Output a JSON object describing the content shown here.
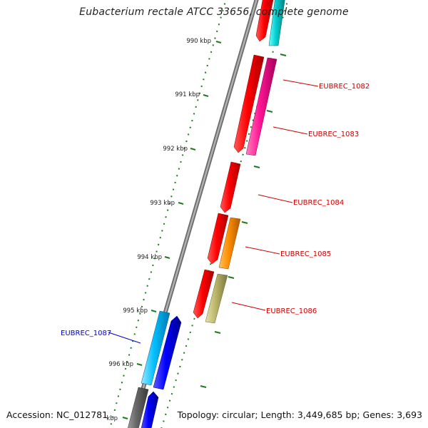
{
  "title": "Eubacterium rectale ATCC 33656, complete genome",
  "colors": {
    "background": "#ffffff",
    "backbone": "#9a9a9a",
    "tick_marks": "#1f7a1f",
    "forward_label": "#cc0000",
    "reverse_label": "#0000cc"
  },
  "ticks": [
    {
      "label": "990 kbp"
    },
    {
      "label": "991 kbp"
    },
    {
      "label": "992 kbp"
    },
    {
      "label": "993 kbp"
    },
    {
      "label": "994 kbp"
    },
    {
      "label": "995 kbp"
    },
    {
      "label": "996 kbp"
    },
    {
      "label": "kbp"
    }
  ],
  "gene_labels": [
    {
      "name": "EUBREC_1082",
      "strand": "forward"
    },
    {
      "name": "EUBREC_1083",
      "strand": "forward"
    },
    {
      "name": "EUBREC_1084",
      "strand": "forward"
    },
    {
      "name": "EUBREC_1085",
      "strand": "forward"
    },
    {
      "name": "EUBREC_1086",
      "strand": "forward"
    },
    {
      "name": "EUBREC_1087",
      "strand": "reverse"
    }
  ],
  "features": [
    {
      "color": "#ff0000",
      "role": "forward-cds"
    },
    {
      "color": "#00cccc",
      "role": "forward-misc"
    },
    {
      "color": "#ff1493",
      "role": "forward-misc"
    },
    {
      "color": "#ff8c00",
      "role": "forward-misc"
    },
    {
      "color": "#bdb76b",
      "role": "forward-misc"
    },
    {
      "color": "#00bfff",
      "role": "reverse-misc"
    },
    {
      "color": "#0000ff",
      "role": "reverse-cds"
    },
    {
      "color": "#666666",
      "role": "reverse-misc"
    }
  ],
  "footer": {
    "accession": "Accession: NC_012781",
    "summary": "Topology: circular; Length: 3,449,685 bp; Genes: 3,693"
  }
}
